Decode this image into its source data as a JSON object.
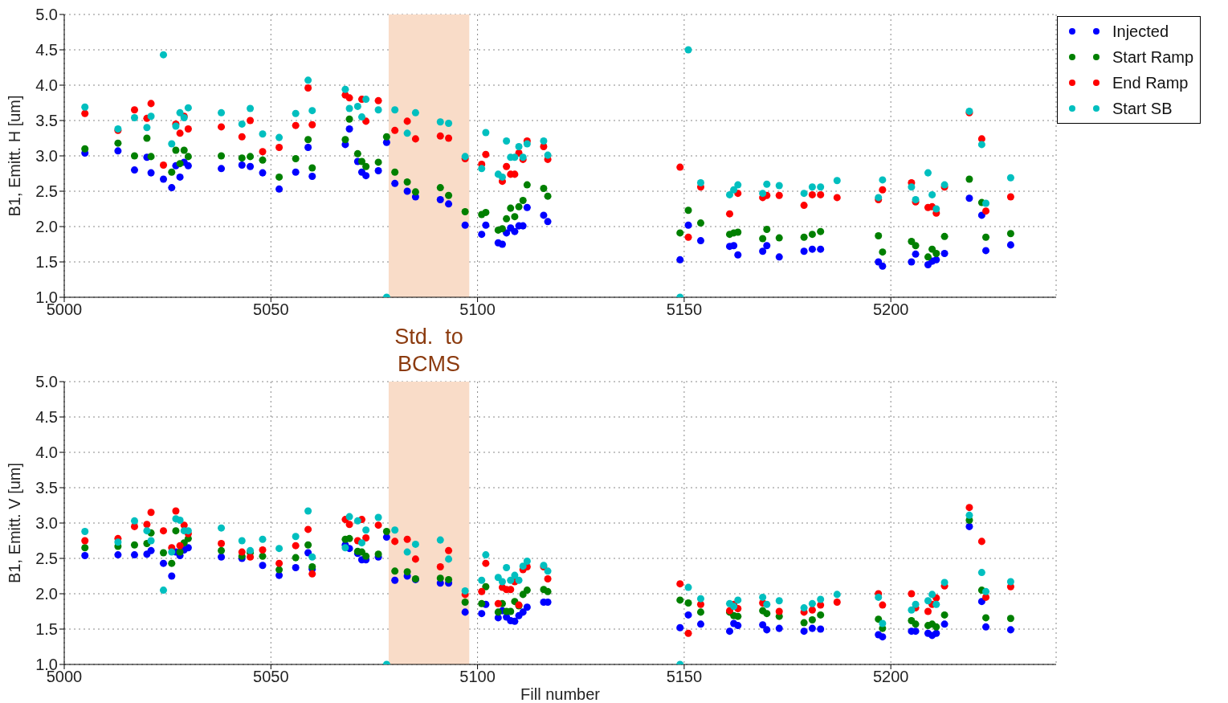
{
  "chart_data": [
    {
      "type": "scatter",
      "ylabel": "B1, Emitt. H [um]",
      "marker": "circle",
      "grid": true,
      "legend": "top right",
      "x": [
        5005,
        5013,
        5017,
        5020,
        5021,
        5024,
        5026,
        5027,
        5028,
        5029,
        5030,
        5038,
        5043,
        5045,
        5048,
        5052,
        5056,
        5059,
        5060,
        5068,
        5069,
        5071,
        5072,
        5073,
        5076,
        5078,
        5080,
        5083,
        5085,
        5091,
        5093,
        5097,
        5101,
        5102,
        5105,
        5106,
        5107,
        5108,
        5109,
        5110,
        5111,
        5112,
        5116,
        5117,
        5149,
        5151,
        5154,
        5161,
        5162,
        5163,
        5169,
        5170,
        5173,
        5179,
        5181,
        5183,
        5187,
        5197,
        5198,
        5205,
        5206,
        5209,
        5210,
        5211,
        5213,
        5219,
        5222,
        5223,
        5229
      ],
      "xlim": [
        5000,
        5240
      ],
      "xticks": [
        5000,
        5050,
        5100,
        5150,
        5200
      ],
      "ylim": [
        1,
        5
      ],
      "yticks": [
        {
          "value": 1,
          "label": "1.0"
        },
        {
          "value": 1.5,
          "label": "1.5"
        },
        {
          "value": 2,
          "label": "2.0"
        },
        {
          "value": 2.5,
          "label": "2.5"
        },
        {
          "value": 3,
          "label": "3.0"
        },
        {
          "value": 3.5,
          "label": "3.5"
        },
        {
          "value": 4,
          "label": "4.0"
        },
        {
          "value": 4.5,
          "label": "4.5"
        },
        {
          "value": 5,
          "label": "5.0"
        }
      ],
      "bands": [
        {
          "axis": "x",
          "from": 5078.5,
          "to": 5098,
          "label": "Std.  to BCMS",
          "color": "#f9dcc8"
        }
      ],
      "series": [
        {
          "name": "Injected",
          "color": "#0000ff",
          "values": [
            3.04,
            3.07,
            2.8,
            2.98,
            2.76,
            2.67,
            2.55,
            2.86,
            2.7,
            2.91,
            2.86,
            2.82,
            2.87,
            2.85,
            2.76,
            2.53,
            2.77,
            3.12,
            2.71,
            3.16,
            3.38,
            2.92,
            2.77,
            2.72,
            2.79,
            3.19,
            2.61,
            2.5,
            2.42,
            2.38,
            2.32,
            2.02,
            1.89,
            2.02,
            1.77,
            1.75,
            1.91,
            1.98,
            1.93,
            2.01,
            2.01,
            2.27,
            2.16,
            2.07,
            1.53,
            2.02,
            1.8,
            1.72,
            1.73,
            1.6,
            1.65,
            1.73,
            1.57,
            1.65,
            1.68,
            1.68,
            null,
            1.5,
            1.44,
            1.5,
            1.61,
            1.46,
            1.51,
            1.53,
            1.62,
            2.4,
            2.16,
            1.66,
            1.74
          ]
        },
        {
          "name": "Start Ramp",
          "color": "#008000",
          "values": [
            3.1,
            3.18,
            3.0,
            3.25,
            2.99,
            null,
            2.77,
            3.08,
            2.89,
            3.08,
            2.99,
            3.0,
            2.97,
            2.99,
            2.94,
            2.7,
            2.96,
            3.23,
            2.83,
            3.23,
            3.52,
            3.03,
            2.92,
            2.85,
            2.91,
            3.27,
            2.77,
            2.63,
            2.49,
            2.55,
            2.44,
            2.21,
            2.17,
            2.2,
            1.95,
            1.97,
            2.11,
            2.26,
            2.14,
            2.28,
            2.37,
            2.59,
            2.54,
            2.43,
            1.91,
            2.23,
            2.05,
            1.89,
            1.91,
            1.92,
            1.83,
            1.96,
            1.84,
            1.85,
            1.89,
            1.93,
            null,
            1.87,
            1.64,
            1.79,
            1.73,
            1.57,
            1.68,
            1.62,
            1.86,
            2.67,
            2.34,
            1.85,
            1.9
          ]
        },
        {
          "name": "End Ramp",
          "color": "#ff0000",
          "values": [
            3.6,
            3.36,
            3.65,
            3.53,
            3.74,
            2.87,
            null,
            3.45,
            3.32,
            3.56,
            3.38,
            3.41,
            3.27,
            3.5,
            3.06,
            3.12,
            3.43,
            3.96,
            3.44,
            3.86,
            3.82,
            null,
            3.8,
            3.49,
            3.78,
            null,
            3.36,
            3.49,
            3.24,
            3.28,
            3.25,
            2.96,
            2.88,
            3.02,
            null,
            2.64,
            2.85,
            2.74,
            2.74,
            3.04,
            2.95,
            3.21,
            3.13,
            2.95,
            2.84,
            1.85,
            2.56,
            2.18,
            null,
            2.47,
            2.41,
            2.44,
            2.44,
            2.3,
            2.45,
            2.45,
            2.41,
            2.38,
            2.52,
            2.62,
            2.35,
            2.27,
            2.28,
            2.19,
            2.56,
            3.61,
            3.24,
            2.22,
            2.42
          ]
        },
        {
          "name": "Start SB",
          "color": "#00bfbf",
          "values": [
            3.69,
            3.38,
            3.54,
            3.4,
            3.56,
            4.43,
            3.17,
            3.42,
            3.61,
            3.54,
            3.68,
            3.61,
            3.45,
            3.67,
            3.31,
            3.26,
            3.6,
            4.07,
            3.64,
            3.94,
            3.67,
            3.7,
            3.55,
            3.8,
            3.65,
            1.0,
            3.65,
            3.32,
            3.61,
            3.48,
            3.46,
            2.99,
            2.82,
            3.33,
            2.74,
            2.7,
            3.21,
            2.98,
            2.98,
            3.13,
            2.98,
            3.17,
            3.21,
            3.01,
            1.0,
            4.5,
            2.62,
            2.45,
            2.52,
            2.59,
            2.47,
            2.6,
            2.58,
            2.47,
            2.56,
            2.56,
            2.65,
            2.41,
            2.66,
            2.56,
            2.38,
            2.76,
            2.45,
            2.25,
            2.59,
            3.63,
            3.16,
            2.33,
            2.69
          ]
        }
      ]
    },
    {
      "type": "scatter",
      "xlabel": "Fill number",
      "ylabel": "B1, Emitt. V [um]",
      "marker": "circle",
      "grid": true,
      "x": [
        5005,
        5013,
        5017,
        5020,
        5021,
        5024,
        5026,
        5027,
        5028,
        5029,
        5030,
        5038,
        5043,
        5045,
        5048,
        5052,
        5056,
        5059,
        5060,
        5068,
        5069,
        5071,
        5072,
        5073,
        5076,
        5078,
        5080,
        5083,
        5085,
        5091,
        5093,
        5097,
        5101,
        5102,
        5105,
        5106,
        5107,
        5108,
        5109,
        5110,
        5111,
        5112,
        5116,
        5117,
        5149,
        5151,
        5154,
        5161,
        5162,
        5163,
        5169,
        5170,
        5173,
        5179,
        5181,
        5183,
        5187,
        5197,
        5198,
        5205,
        5206,
        5209,
        5210,
        5211,
        5213,
        5219,
        5222,
        5223,
        5229
      ],
      "xlim": [
        5000,
        5240
      ],
      "xticks": [
        5000,
        5050,
        5100,
        5150,
        5200
      ],
      "ylim": [
        1,
        5
      ],
      "yticks": [
        {
          "value": 1,
          "label": "1.0"
        },
        {
          "value": 1.5,
          "label": "1.5"
        },
        {
          "value": 2,
          "label": "2.0"
        },
        {
          "value": 2.5,
          "label": "2.5"
        },
        {
          "value": 3,
          "label": "3.0"
        },
        {
          "value": 3.5,
          "label": "3.5"
        },
        {
          "value": 4,
          "label": "4.0"
        },
        {
          "value": 4.5,
          "label": "4.5"
        },
        {
          "value": 5,
          "label": "5.0"
        }
      ],
      "bands": [
        {
          "axis": "x",
          "from": 5078.5,
          "to": 5098,
          "color": "#f9dcc8"
        }
      ],
      "series": [
        {
          "color": "#0000ff",
          "values": [
            2.54,
            2.55,
            2.55,
            2.56,
            2.61,
            2.43,
            2.25,
            2.59,
            2.54,
            2.62,
            2.65,
            2.52,
            2.5,
            null,
            2.4,
            2.26,
            2.37,
            2.58,
            2.35,
            2.69,
            2.64,
            2.57,
            2.48,
            2.48,
            2.52,
            2.8,
            2.19,
            2.25,
            2.2,
            2.15,
            2.15,
            1.74,
            1.72,
            1.85,
            1.66,
            1.76,
            1.67,
            1.62,
            1.61,
            1.69,
            1.74,
            1.81,
            1.88,
            1.88,
            1.52,
            1.7,
            1.57,
            1.47,
            1.58,
            1.55,
            1.56,
            1.49,
            1.51,
            1.47,
            1.51,
            1.5,
            null,
            1.42,
            1.39,
            1.47,
            1.47,
            1.44,
            1.41,
            1.44,
            1.57,
            2.95,
            1.89,
            1.53,
            1.49
          ]
        },
        {
          "color": "#008000",
          "values": [
            2.65,
            2.67,
            2.69,
            2.71,
            2.86,
            2.58,
            2.43,
            2.89,
            2.59,
            2.72,
            2.78,
            2.61,
            2.53,
            2.58,
            2.53,
            2.34,
            2.51,
            2.69,
            2.38,
            2.77,
            2.78,
            2.6,
            2.59,
            2.53,
            2.56,
            2.88,
            2.32,
            2.31,
            2.21,
            2.22,
            2.2,
            1.88,
            1.86,
            2.1,
            1.74,
            1.86,
            1.75,
            1.75,
            1.89,
            1.83,
            1.99,
            2.05,
            2.06,
            2.03,
            1.91,
            1.87,
            1.74,
            1.74,
            1.69,
            1.68,
            1.76,
            1.72,
            1.68,
            1.59,
            1.63,
            1.7,
            null,
            1.64,
            1.51,
            1.62,
            1.57,
            1.55,
            1.57,
            1.53,
            1.7,
            3.04,
            2.05,
            1.66,
            1.65
          ]
        },
        {
          "color": "#ff0000",
          "values": [
            2.75,
            2.78,
            2.95,
            2.98,
            3.15,
            2.89,
            2.65,
            3.17,
            2.68,
            2.97,
            2.85,
            2.71,
            2.59,
            2.52,
            2.62,
            2.43,
            2.68,
            2.91,
            2.28,
            3.05,
            2.98,
            2.75,
            3.05,
            2.79,
            2.97,
            null,
            2.74,
            2.77,
            2.49,
            2.38,
            2.61,
            1.99,
            2.03,
            2.43,
            1.86,
            2.09,
            2.06,
            2.06,
            2.17,
            1.84,
            2.34,
            2.38,
            2.38,
            2.21,
            2.14,
            1.44,
            1.85,
            1.76,
            1.85,
            1.79,
            1.87,
            null,
            1.75,
            1.74,
            1.77,
            1.84,
            1.88,
            2.0,
            1.84,
            2.0,
            1.8,
            1.75,
            1.85,
            1.94,
            2.11,
            3.22,
            2.74,
            1.95,
            2.1
          ]
        },
        {
          "color": "#00bfbf",
          "values": [
            2.88,
            2.73,
            3.03,
            2.89,
            2.75,
            2.05,
            2.59,
            3.06,
            3.04,
            2.89,
            2.89,
            2.93,
            2.75,
            2.61,
            2.77,
            2.64,
            2.81,
            3.17,
            2.52,
            2.65,
            3.09,
            3.03,
            2.72,
            2.9,
            3.08,
            1.0,
            2.9,
            2.59,
            2.7,
            2.76,
            2.49,
            2.04,
            2.19,
            2.55,
            2.23,
            2.17,
            2.37,
            2.19,
            2.26,
            2.19,
            2.39,
            2.46,
            2.4,
            2.32,
            1.0,
            2.09,
            1.93,
            1.86,
            1.82,
            1.91,
            1.95,
            1.85,
            1.9,
            1.8,
            1.86,
            1.92,
            1.99,
            1.95,
            1.58,
            1.77,
            1.85,
            1.9,
            1.99,
            1.85,
            2.16,
            3.11,
            2.3,
            2.03,
            2.17
          ]
        }
      ]
    }
  ]
}
